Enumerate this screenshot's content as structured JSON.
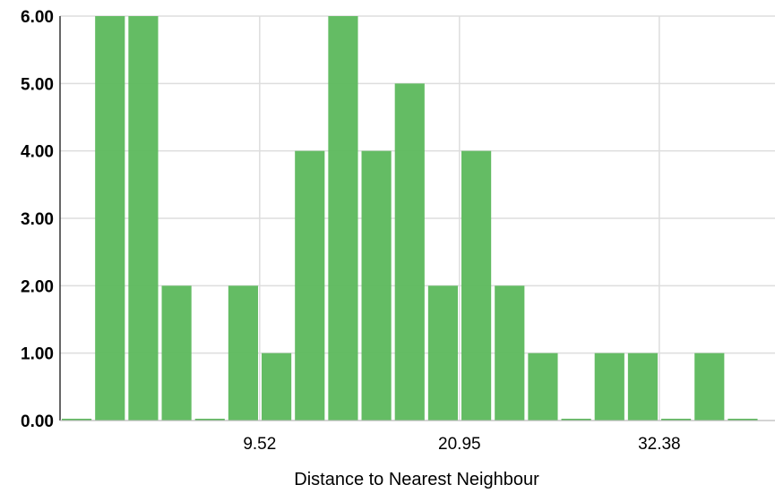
{
  "chart_data": {
    "type": "bar",
    "title": "",
    "xlabel": "Distance to Nearest Neighbour",
    "ylabel": "",
    "y_ticks": [
      "0.00",
      "1.00",
      "2.00",
      "3.00",
      "4.00",
      "5.00",
      "6.00"
    ],
    "x_ticks": [
      "9.52",
      "20.95",
      "32.38"
    ],
    "ylim": [
      0,
      6
    ],
    "xlim": [
      -1.9,
      39.0
    ],
    "bin_start": -1.9,
    "bin_width": 1.905,
    "values": [
      0,
      6,
      6,
      2,
      0,
      2,
      1,
      4,
      6,
      4,
      5,
      2,
      4,
      2,
      1,
      0,
      1,
      1,
      0,
      1,
      0
    ],
    "bar_color": "#5cb85c",
    "grid": true
  }
}
